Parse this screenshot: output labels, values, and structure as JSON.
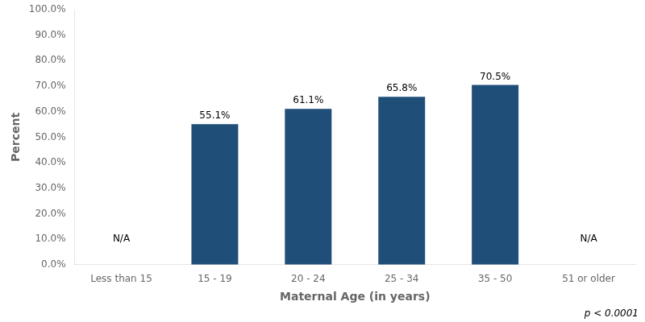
{
  "chart_data": {
    "type": "bar",
    "categories": [
      "Less than 15",
      "15 - 19",
      "20 - 24",
      "25 - 34",
      "35 - 50",
      "51 or older"
    ],
    "values": [
      null,
      55.1,
      61.1,
      65.8,
      70.5,
      null
    ],
    "value_labels": [
      null,
      "55.1%",
      "61.1%",
      "65.8%",
      "70.5%",
      null
    ],
    "data_labels": true,
    "color": "#1F4E79",
    "xlabel": "Maternal Age (in years)",
    "ylabel": "Percent",
    "ylim": [
      0,
      100
    ],
    "yticks": [
      {
        "value": 0,
        "label": "0.0%"
      },
      {
        "value": 10,
        "label": "10.0%"
      },
      {
        "value": 20,
        "label": "20.0%"
      },
      {
        "value": 30,
        "label": "30.0%"
      },
      {
        "value": 40,
        "label": "40.0%"
      },
      {
        "value": 50,
        "label": "50.0%"
      },
      {
        "value": 60,
        "label": "60.0%"
      },
      {
        "value": 70,
        "label": "70.0%"
      },
      {
        "value": 80,
        "label": "80.0%"
      },
      {
        "value": 90,
        "label": "90.0%"
      },
      {
        "value": 100,
        "label": "100.0%"
      }
    ],
    "grid": false,
    "annotations": [
      {
        "text": "N/A",
        "x": "Less than 15",
        "y": 10
      },
      {
        "text": "N/A",
        "x": "51 or older",
        "y": 10
      },
      {
        "text": "p < 0.0001"
      }
    ]
  }
}
